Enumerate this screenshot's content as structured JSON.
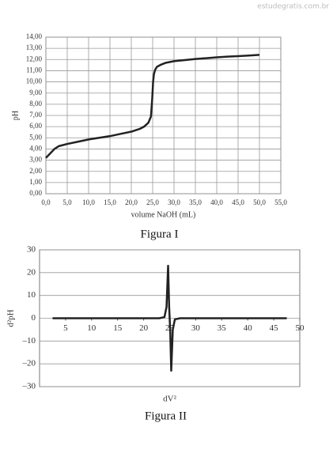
{
  "watermark": "estudegratis.com.br",
  "chart_data": [
    {
      "type": "line",
      "caption": "Figura I",
      "x_label": "volume NaOH (mL)",
      "y_label": "pH",
      "x": [
        0,
        1,
        2,
        3,
        5,
        7.5,
        10,
        12.5,
        15,
        17.5,
        20,
        22,
        23,
        24,
        24.6,
        24.9,
        25.1,
        25.3,
        25.6,
        26,
        27,
        28,
        30,
        32.5,
        35,
        37.5,
        40,
        42.5,
        45,
        47.5,
        50
      ],
      "values": [
        3.2,
        3.6,
        4.0,
        4.25,
        4.45,
        4.65,
        4.85,
        5.0,
        5.15,
        5.35,
        5.55,
        5.8,
        6.0,
        6.35,
        6.9,
        8.5,
        10.0,
        10.7,
        11.1,
        11.35,
        11.55,
        11.7,
        11.85,
        11.95,
        12.05,
        12.12,
        12.2,
        12.26,
        12.3,
        12.36,
        12.42
      ],
      "color": "#222222",
      "xlim": [
        0,
        55
      ],
      "ylim": [
        0,
        14
      ],
      "grid": "both",
      "xaxis_position": "bottom",
      "xticks": [
        {
          "value": 0,
          "label": "0,0"
        },
        {
          "value": 5,
          "label": "5,0"
        },
        {
          "value": 10,
          "label": "10,0"
        },
        {
          "value": 15,
          "label": "15,0"
        },
        {
          "value": 20,
          "label": "20,0"
        },
        {
          "value": 25,
          "label": "25,0"
        },
        {
          "value": 30,
          "label": "30,0"
        },
        {
          "value": 35,
          "label": "35,0"
        },
        {
          "value": 40,
          "label": "40,0"
        },
        {
          "value": 45,
          "label": "45,0"
        },
        {
          "value": 50,
          "label": "50,0"
        },
        {
          "value": 55,
          "label": "55,0"
        }
      ],
      "yticks": [
        {
          "value": 0,
          "label": "0,00"
        },
        {
          "value": 1,
          "label": "1,00"
        },
        {
          "value": 2,
          "label": "2,00"
        },
        {
          "value": 3,
          "label": "3,00"
        },
        {
          "value": 4,
          "label": "4,00"
        },
        {
          "value": 5,
          "label": "5,00"
        },
        {
          "value": 6,
          "label": "6,00"
        },
        {
          "value": 7,
          "label": "7,00"
        },
        {
          "value": 8,
          "label": "8,00"
        },
        {
          "value": 9,
          "label": "9,00"
        },
        {
          "value": 10,
          "label": "10,00"
        },
        {
          "value": 11,
          "label": "11,00"
        },
        {
          "value": 12,
          "label": "12,00"
        },
        {
          "value": 13,
          "label": "13,00"
        },
        {
          "value": 14,
          "label": "14,00"
        }
      ]
    },
    {
      "type": "line",
      "caption": "Figura II",
      "x_label": "dV²",
      "y_label": "d²pH",
      "x": [
        2.5,
        10,
        20,
        23,
        24,
        24.4,
        24.7,
        24.9,
        25.1,
        25.3,
        25.6,
        26,
        27,
        30,
        40,
        47.5
      ],
      "values": [
        0,
        0,
        0,
        0,
        0.5,
        5,
        23,
        5,
        -5,
        -23,
        -5,
        -0.5,
        0,
        0,
        0,
        0
      ],
      "color": "#222222",
      "xlim": [
        0,
        50
      ],
      "ylim": [
        -30,
        30
      ],
      "grid": "y",
      "xaxis_position": "zero",
      "xticks": [
        5,
        10,
        15,
        20,
        25,
        30,
        35,
        40,
        45,
        50
      ],
      "yticks": [
        {
          "value": -30,
          "label": "–30"
        },
        {
          "value": -20,
          "label": "–20"
        },
        {
          "value": -10,
          "label": "–10"
        },
        0,
        10,
        20,
        30
      ]
    }
  ]
}
